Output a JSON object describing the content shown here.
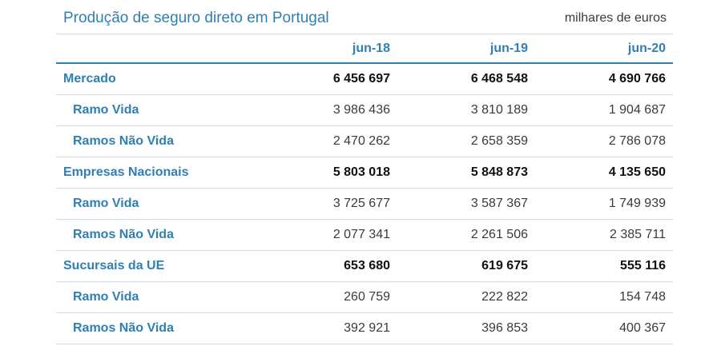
{
  "table": {
    "title": "Produção de seguro direto em Portugal",
    "units": "milhares de euros",
    "columns": [
      "jun-18",
      "jun-19",
      "jun-20"
    ],
    "rows": [
      {
        "label": "Mercado",
        "level": "main",
        "values": [
          "6 456 697",
          "6 468 548",
          "4 690 766"
        ]
      },
      {
        "label": "Ramo Vida",
        "level": "sub",
        "values": [
          "3 986 436",
          "3 810 189",
          "1 904 687"
        ]
      },
      {
        "label": "Ramos Não Vida",
        "level": "sub",
        "values": [
          "2 470 262",
          "2 658 359",
          "2 786 078"
        ]
      },
      {
        "label": "Empresas Nacionais",
        "level": "main",
        "values": [
          "5 803 018",
          "5 848 873",
          "4 135 650"
        ]
      },
      {
        "label": "Ramo Vida",
        "level": "sub",
        "values": [
          "3 725 677",
          "3 587 367",
          "1 749 939"
        ]
      },
      {
        "label": "Ramos Não Vida",
        "level": "sub",
        "values": [
          "2 077 341",
          "2 261 506",
          "2 385 711"
        ]
      },
      {
        "label": "Sucursais da UE",
        "level": "main",
        "values": [
          "653 680",
          "619 675",
          "555 116"
        ]
      },
      {
        "label": "Ramo Vida",
        "level": "sub",
        "values": [
          "260 759",
          "222 822",
          "154 748"
        ]
      },
      {
        "label": "Ramos Não Vida",
        "level": "sub",
        "values": [
          "392 921",
          "396 853",
          "400 367"
        ]
      }
    ]
  },
  "colors": {
    "accent": "#2f7fb3",
    "text": "#3a3a3a"
  }
}
